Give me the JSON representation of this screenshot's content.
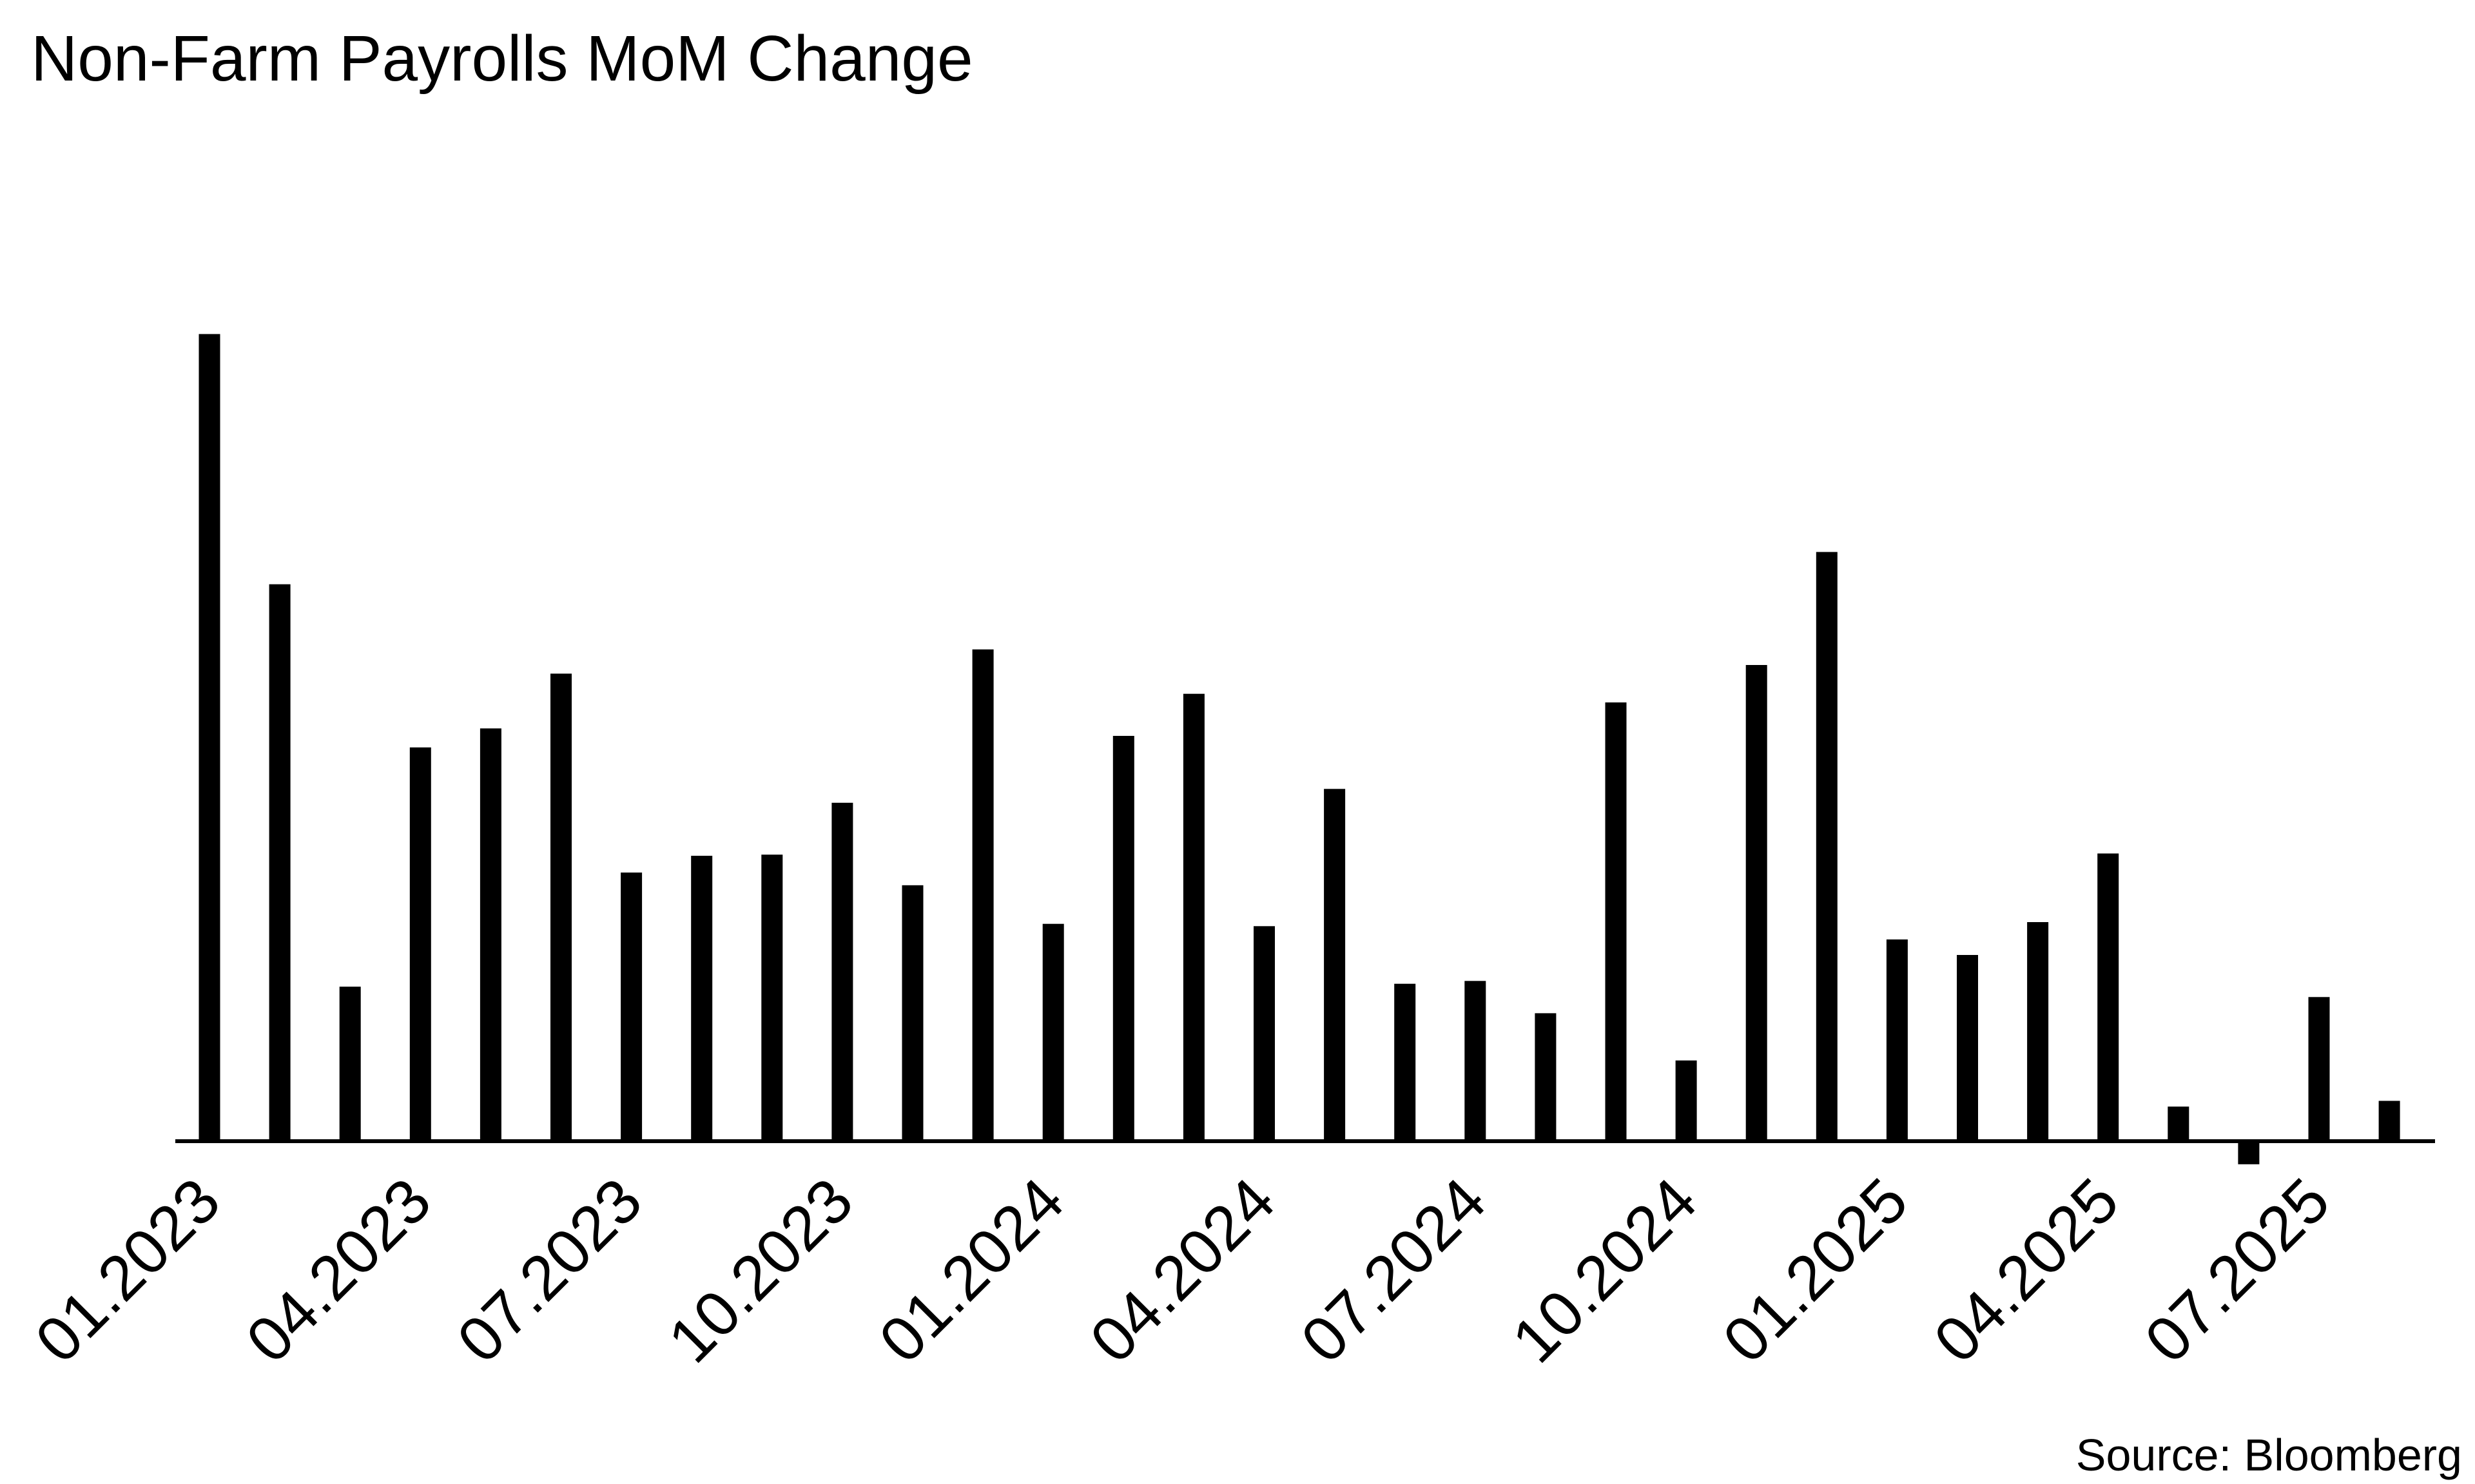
{
  "chart_data": {
    "type": "bar",
    "title": "Non-Farm Payrolls MoM Change",
    "source": "Source: Bloomberg",
    "xlabel": "",
    "ylabel": "",
    "bar_color": "#000000",
    "axis_color": "#000000",
    "background": "#ffffff",
    "grid": false,
    "legend": "none",
    "ylim": [
      -40,
      1450
    ],
    "categories": [
      "01.2023",
      "02.2023",
      "03.2023",
      "04.2023",
      "05.2023",
      "06.2023",
      "07.2023",
      "08.2023",
      "09.2023",
      "10.2023",
      "11.2023",
      "12.2023",
      "01.2024",
      "02.2024",
      "03.2024",
      "04.2024",
      "05.2024",
      "06.2024",
      "07.2024",
      "08.2024",
      "09.2024",
      "10.2024",
      "11.2024",
      "12.2024",
      "01.2025",
      "02.2025",
      "03.2025",
      "04.2025",
      "05.2025",
      "06.2025",
      "07.2025",
      "08.2025"
    ],
    "tick_labels": [
      "01.2023",
      "04.2023",
      "07.2023",
      "10.2023",
      "01.2024",
      "04.2024",
      "07.2024",
      "10.2024",
      "01.2025",
      "04.2025",
      "07.2025"
    ],
    "values": [
      1400,
      966,
      268,
      683,
      716,
      811,
      466,
      495,
      497,
      587,
      444,
      853,
      377,
      703,
      776,
      373,
      611,
      273,
      278,
      222,
      761,
      140,
      826,
      1022,
      350,
      323,
      380,
      499,
      60,
      -40,
      250,
      70
    ]
  }
}
